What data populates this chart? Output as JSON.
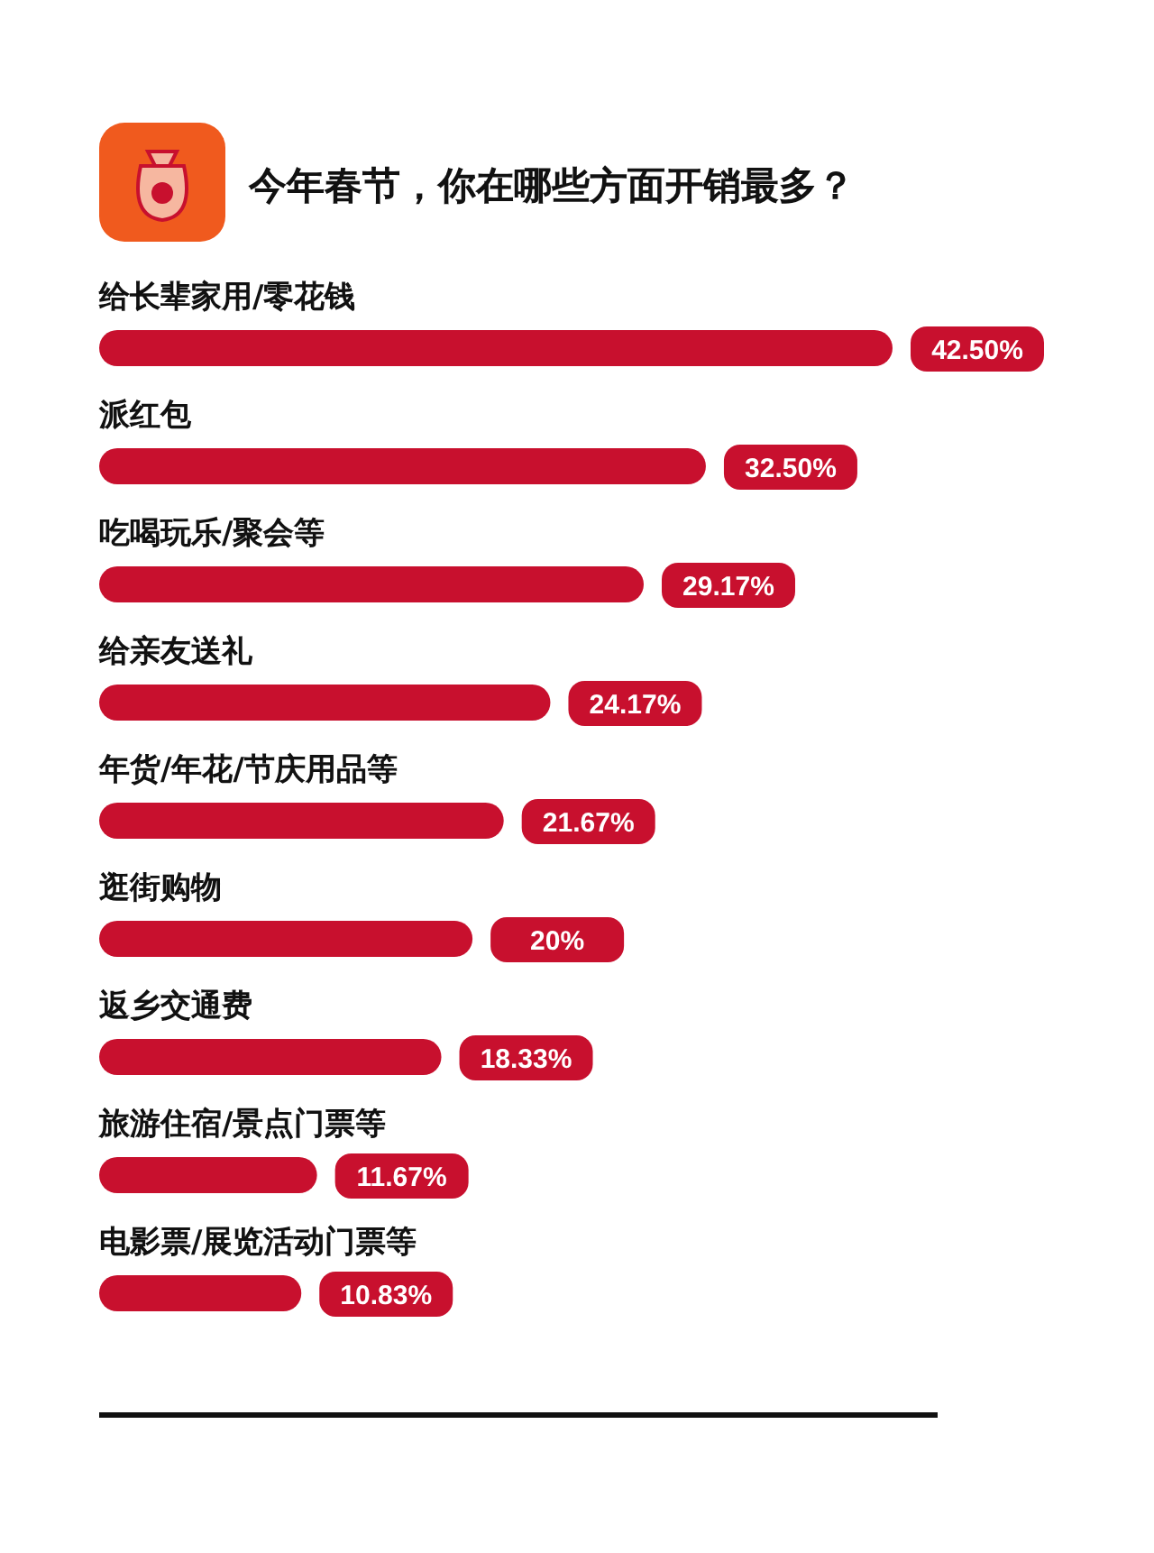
{
  "chart_data": {
    "type": "bar",
    "orientation": "horizontal",
    "title": "今年春节，你在哪些方面开销最多？",
    "categories": [
      "给长辈家用/零花钱",
      "派红包",
      "吃喝玩乐/聚会等",
      "给亲友送礼",
      "年货/年花/节庆用品等",
      "逛街购物",
      "返乡交通费",
      "旅游住宿/景点门票等",
      "电影票/展览活动门票等"
    ],
    "values": [
      42.5,
      32.5,
      29.17,
      24.17,
      21.67,
      20,
      18.33,
      11.67,
      10.83
    ],
    "value_labels": [
      "42.50%",
      "32.50%",
      "29.17%",
      "24.17%",
      "21.67%",
      "20%",
      "18.33%",
      "11.67%",
      "10.83%"
    ],
    "color": "#c8102e"
  }
}
